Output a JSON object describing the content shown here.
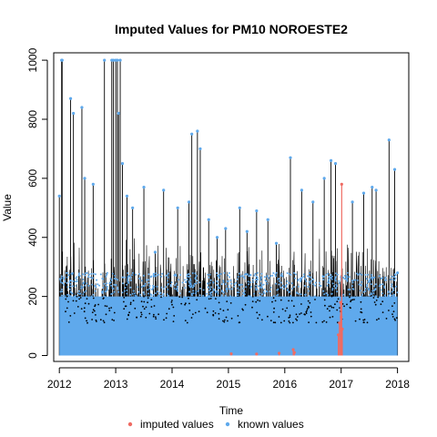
{
  "chart_data": {
    "type": "scatter",
    "title": "Imputed Values for  PM10 NOROESTE2",
    "xlabel": "Time",
    "ylabel": "Value",
    "xlim": [
      2011.9,
      2018.2
    ],
    "ylim": [
      -20,
      1025
    ],
    "x_ticks": [
      2012,
      2013,
      2014,
      2015,
      2016,
      2017,
      2018
    ],
    "y_ticks": [
      0,
      200,
      400,
      600,
      800,
      1000
    ],
    "grid": false,
    "legend_position": "bottom",
    "series": [
      {
        "name": "imputed values",
        "color": "#ef6b63",
        "x": [
          2015.05,
          2015.5,
          2015.9,
          2016.15,
          2016.17,
          2016.95,
          2016.97,
          2016.99,
          2017.0,
          2017.01,
          2017.02
        ],
        "y": [
          6,
          5,
          8,
          20,
          10,
          70,
          110,
          180,
          130,
          580,
          90
        ]
      },
      {
        "name": "known values",
        "color": "#5fa9ec",
        "x": [
          2012.0,
          2012.04,
          2012.05,
          2012.2,
          2012.25,
          2012.4,
          2012.45,
          2012.6,
          2012.8,
          2012.93,
          2012.96,
          2013.0,
          2013.03,
          2013.05,
          2013.08,
          2013.12,
          2013.2,
          2013.3,
          2013.5,
          2013.7,
          2013.85,
          2014.1,
          2014.3,
          2014.35,
          2014.45,
          2014.5,
          2014.65,
          2014.8,
          2014.95,
          2015.2,
          2015.33,
          2015.5,
          2015.7,
          2015.85,
          2016.1,
          2016.3,
          2016.5,
          2016.7,
          2016.82,
          2016.9,
          2017.2,
          2017.4,
          2017.55,
          2017.62,
          2017.85,
          2017.95,
          2018.0
        ],
        "y": [
          540,
          1000,
          1000,
          870,
          820,
          840,
          600,
          580,
          1000,
          1000,
          1000,
          1000,
          1000,
          820,
          1000,
          650,
          540,
          500,
          570,
          350,
          560,
          500,
          520,
          750,
          760,
          700,
          460,
          400,
          430,
          500,
          420,
          490,
          460,
          380,
          670,
          560,
          520,
          600,
          660,
          650,
          520,
          550,
          570,
          560,
          730,
          630,
          280
        ]
      }
    ],
    "baseline_band": {
      "series": "known values",
      "min": 0,
      "max": 200
    }
  }
}
